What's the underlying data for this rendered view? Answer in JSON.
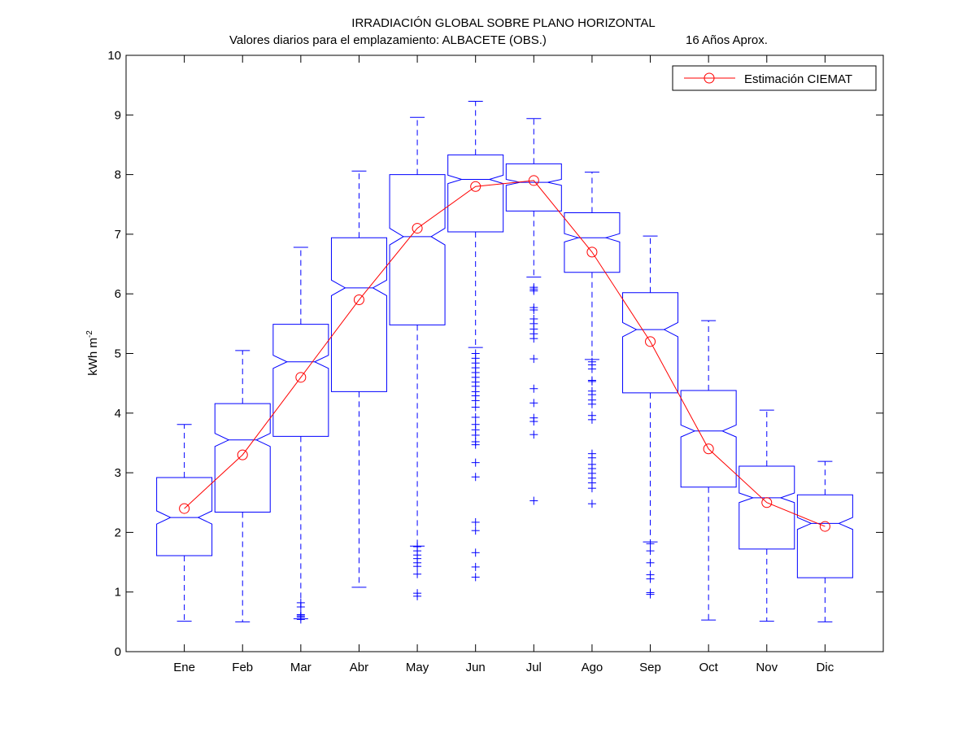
{
  "chart_data": {
    "type": "box",
    "title": "IRRADIACIÓN GLOBAL SOBRE PLANO HORIZONTAL",
    "subtitle_left": "Valores diarios para el emplazamiento:  ALBACETE (OBS.)",
    "subtitle_right": "16 Años Aprox.",
    "ylabel_main": "kWh m",
    "ylabel_sup": "-2",
    "xlabel": "",
    "ylim": [
      0,
      10
    ],
    "yticks": [
      "0",
      "1",
      "2",
      "3",
      "4",
      "5",
      "6",
      "7",
      "8",
      "9",
      "10"
    ],
    "categories": [
      "Ene",
      "Feb",
      "Mar",
      "Abr",
      "May",
      "Jun",
      "Jul",
      "Ago",
      "Sep",
      "Oct",
      "Nov",
      "Dic"
    ],
    "boxes": [
      {
        "min": 0.51,
        "q1": 1.61,
        "median": 2.25,
        "q3": 2.92,
        "max": 3.81,
        "notch_lo": 2.14,
        "notch_hi": 2.36,
        "outliers": []
      },
      {
        "min": 0.5,
        "q1": 2.34,
        "median": 3.55,
        "q3": 4.16,
        "max": 5.05,
        "notch_lo": 3.44,
        "notch_hi": 3.66,
        "outliers": []
      },
      {
        "min": 0.55,
        "q1": 3.61,
        "median": 4.86,
        "q3": 5.49,
        "max": 6.78,
        "notch_lo": 4.75,
        "notch_hi": 4.97,
        "outliers": [
          0.54,
          0.58,
          0.6,
          0.62,
          0.75,
          0.82
        ]
      },
      {
        "min": 1.08,
        "q1": 4.36,
        "median": 6.1,
        "q3": 6.94,
        "max": 8.06,
        "notch_lo": 5.97,
        "notch_hi": 6.23,
        "outliers": []
      },
      {
        "min": 1.77,
        "q1": 5.48,
        "median": 6.96,
        "q3": 8.0,
        "max": 8.96,
        "notch_lo": 6.82,
        "notch_hi": 7.1,
        "outliers": [
          0.93,
          0.98,
          1.3,
          1.43,
          1.49,
          1.56,
          1.62,
          1.69,
          1.76
        ]
      },
      {
        "min": 5.1,
        "q1": 7.04,
        "median": 7.92,
        "q3": 8.33,
        "max": 9.23,
        "notch_lo": 7.85,
        "notch_hi": 7.99,
        "outliers": [
          1.25,
          1.42,
          1.66,
          2.03,
          2.17,
          2.93,
          3.17,
          3.47,
          3.52,
          3.63,
          3.72,
          3.81,
          3.93,
          4.1,
          4.21,
          4.29,
          4.36,
          4.45,
          4.52,
          4.6,
          4.68,
          4.76,
          4.84,
          4.92,
          5.0
        ]
      },
      {
        "min": 6.28,
        "q1": 7.39,
        "median": 7.87,
        "q3": 8.18,
        "max": 8.94,
        "notch_lo": 7.82,
        "notch_hi": 7.92,
        "outliers": [
          2.53,
          3.64,
          3.86,
          3.92,
          4.17,
          4.41,
          4.91,
          5.25,
          5.33,
          5.41,
          5.5,
          5.58,
          5.73,
          5.77,
          6.05,
          6.08,
          6.11
        ]
      },
      {
        "min": 4.9,
        "q1": 6.36,
        "median": 6.94,
        "q3": 7.36,
        "max": 8.04,
        "notch_lo": 6.87,
        "notch_hi": 7.01,
        "outliers": [
          2.48,
          2.74,
          2.83,
          2.91,
          2.99,
          3.07,
          3.14,
          3.25,
          3.32,
          3.89,
          3.96,
          4.15,
          4.22,
          4.31,
          4.37,
          4.53,
          4.55,
          4.74,
          4.81,
          4.86
        ]
      },
      {
        "min": 1.84,
        "q1": 4.34,
        "median": 5.4,
        "q3": 6.02,
        "max": 6.97,
        "notch_lo": 5.28,
        "notch_hi": 5.52,
        "outliers": [
          0.96,
          0.99,
          1.22,
          1.29,
          1.49,
          1.69,
          1.81
        ]
      },
      {
        "min": 0.53,
        "q1": 2.76,
        "median": 3.7,
        "q3": 4.38,
        "max": 5.55,
        "notch_lo": 3.6,
        "notch_hi": 3.8,
        "outliers": []
      },
      {
        "min": 0.51,
        "q1": 1.72,
        "median": 2.58,
        "q3": 3.11,
        "max": 4.05,
        "notch_lo": 2.5,
        "notch_hi": 2.66,
        "outliers": []
      },
      {
        "min": 0.5,
        "q1": 1.24,
        "median": 2.15,
        "q3": 2.63,
        "max": 3.19,
        "notch_lo": 2.05,
        "notch_hi": 2.25,
        "outliers": []
      }
    ],
    "series": [
      {
        "name": "Estimación CIEMAT",
        "values": [
          2.4,
          3.3,
          4.6,
          5.9,
          7.1,
          7.8,
          7.9,
          6.7,
          5.2,
          3.4,
          2.5,
          2.1
        ]
      }
    ],
    "legend_position": "top-right",
    "colors": {
      "box": "#0000ff",
      "series": "#ff0000",
      "axes": "#000000"
    }
  }
}
